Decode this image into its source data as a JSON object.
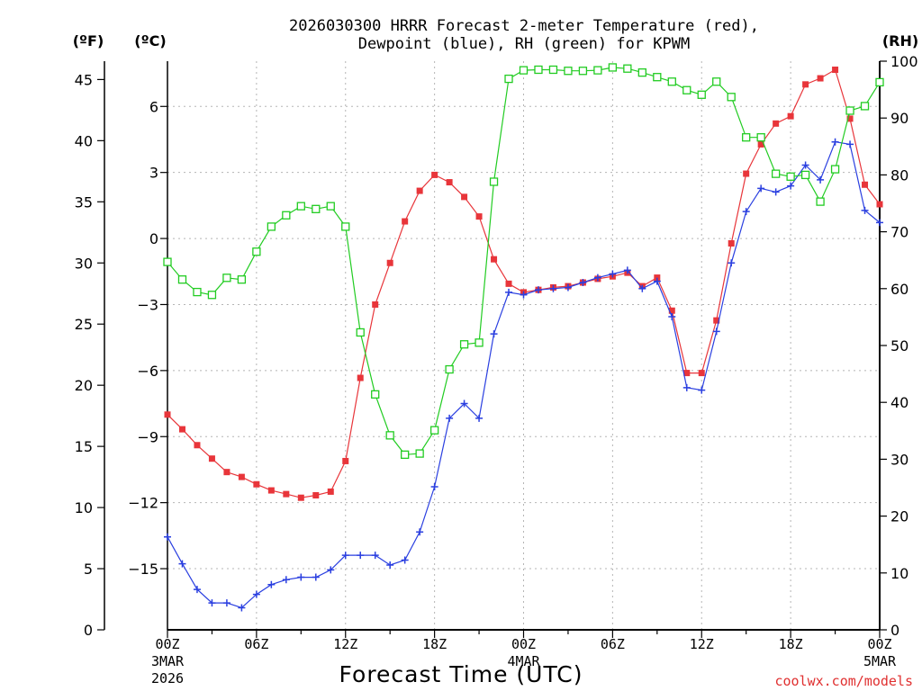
{
  "chart_data": {
    "type": "line",
    "title_line1": "2026030300 HRRR Forecast 2-meter Temperature (red),",
    "title_line2": "Dewpoint (blue), RH (green) for KPWM",
    "xlabel": "Forecast Time (UTC)",
    "credit": "coolwx.com/models",
    "unit_labels": {
      "fahrenheit": "(ºF)",
      "celsius": "(ºC)",
      "rh": "(RH)"
    },
    "x_range_hours": [
      0,
      48
    ],
    "x_ticks": [
      {
        "hour": 0,
        "label": "00Z",
        "label2": "3MAR",
        "label3": "2026"
      },
      {
        "hour": 6,
        "label": "06Z"
      },
      {
        "hour": 12,
        "label": "12Z"
      },
      {
        "hour": 18,
        "label": "18Z"
      },
      {
        "hour": 24,
        "label": "00Z",
        "label2": "4MAR"
      },
      {
        "hour": 30,
        "label": "06Z"
      },
      {
        "hour": 36,
        "label": "12Z"
      },
      {
        "hour": 42,
        "label": "18Z"
      },
      {
        "hour": 48,
        "label": "00Z",
        "label2": "5MAR"
      }
    ],
    "y_left_f": {
      "range": [
        0,
        46.5
      ],
      "ticks": [
        0,
        5,
        10,
        15,
        20,
        25,
        30,
        35,
        40,
        45
      ],
      "tick_labels": [
        "0",
        "5",
        "10",
        "15",
        "20",
        "25",
        "30",
        "35",
        "40",
        "45"
      ]
    },
    "y_left_c": {
      "ticks": [
        -15,
        -12,
        -9,
        -6,
        -3,
        0,
        3,
        6
      ],
      "tick_labels": [
        "−15",
        "−12",
        "−9",
        "−6",
        "−3",
        "0",
        "3",
        "6"
      ]
    },
    "y_right_rh": {
      "range": [
        0,
        100
      ],
      "ticks": [
        0,
        10,
        20,
        30,
        40,
        50,
        60,
        70,
        80,
        90,
        100
      ],
      "tick_labels": [
        "0",
        "10",
        "20",
        "30",
        "40",
        "50",
        "60",
        "70",
        "80",
        "90",
        "100"
      ]
    },
    "series": [
      {
        "name": "Temperature",
        "unit": "F",
        "color": "#e8353a",
        "marker": "filled-square",
        "values": [
          17.6,
          16.4,
          15.1,
          14.0,
          12.9,
          12.5,
          11.9,
          11.4,
          11.1,
          10.8,
          11.0,
          11.3,
          13.8,
          20.6,
          26.6,
          30.0,
          33.4,
          35.9,
          37.2,
          36.6,
          35.4,
          33.8,
          30.3,
          28.3,
          27.6,
          27.8,
          28.0,
          28.1,
          28.4,
          28.7,
          28.9,
          29.2,
          28.1,
          28.8,
          26.1,
          21.0,
          21.0,
          25.3,
          31.6,
          37.3,
          39.7,
          41.4,
          42.0,
          44.6,
          45.1,
          45.8,
          41.8,
          36.4,
          34.8
        ]
      },
      {
        "name": "Dewpoint",
        "unit": "F",
        "color": "#2a3fe0",
        "marker": "plus",
        "values": [
          7.6,
          5.4,
          3.3,
          2.2,
          2.2,
          1.8,
          2.9,
          3.7,
          4.1,
          4.3,
          4.3,
          4.9,
          6.1,
          6.1,
          6.1,
          5.3,
          5.7,
          8.0,
          11.7,
          17.3,
          18.5,
          17.3,
          24.2,
          27.6,
          27.4,
          27.8,
          27.9,
          28.0,
          28.4,
          28.8,
          29.1,
          29.4,
          27.9,
          28.5,
          25.6,
          19.8,
          19.6,
          24.4,
          30.0,
          34.2,
          36.1,
          35.8,
          36.3,
          38.0,
          36.8,
          39.9,
          39.7,
          34.3,
          33.3
        ]
      },
      {
        "name": "Relative Humidity",
        "unit": "%",
        "color": "#22cc22",
        "marker": "open-square",
        "values": [
          64.7,
          61.6,
          59.4,
          58.9,
          61.9,
          61.6,
          66.5,
          70.9,
          72.9,
          74.5,
          74.0,
          74.5,
          70.9,
          52.3,
          41.4,
          34.2,
          30.8,
          31.0,
          35.1,
          45.8,
          50.2,
          50.5,
          78.8,
          96.9,
          98.4,
          98.5,
          98.5,
          98.3,
          98.3,
          98.4,
          98.9,
          98.7,
          98.0,
          97.2,
          96.4,
          94.9,
          94.1,
          96.4,
          93.7,
          86.6,
          86.6,
          80.2,
          79.7,
          80.0,
          75.3,
          81.0,
          91.3,
          92.1,
          96.3
        ]
      }
    ]
  }
}
